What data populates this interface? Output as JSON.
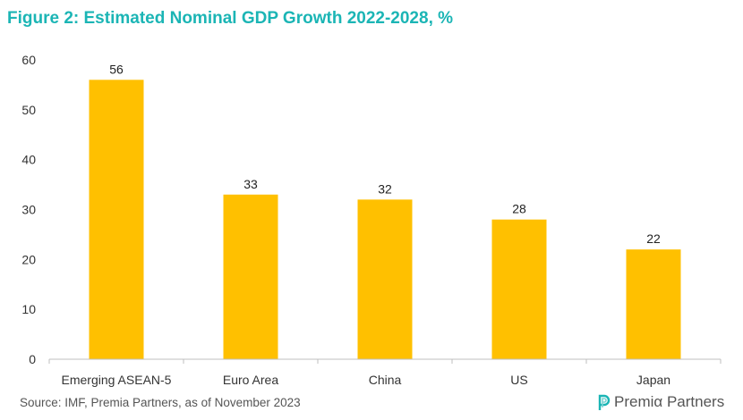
{
  "title": "Figure 2: Estimated Nominal GDP Growth 2022-2028, %",
  "source": "Source: IMF, Premia Partners, as of November 2023",
  "logo": {
    "text": "Premiα Partners",
    "icon": "premia-p-icon"
  },
  "colors": {
    "bar": "#FFC000",
    "title": "#1BB5B5",
    "axis": "#BFBFBF"
  },
  "chart_data": {
    "type": "bar",
    "categories": [
      "Emerging ASEAN-5",
      "Euro Area",
      "China",
      "US",
      "Japan"
    ],
    "values": [
      56,
      33,
      32,
      28,
      22
    ],
    "ylim": [
      0,
      60
    ],
    "yticks": [
      0,
      10,
      20,
      30,
      40,
      50,
      60
    ],
    "grid": false,
    "data_labels": true
  }
}
